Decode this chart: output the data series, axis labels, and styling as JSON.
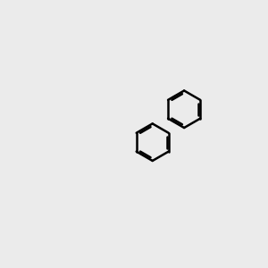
{
  "bg_color": "#ebebeb",
  "bond_color": "#000000",
  "N_color": "#0000cc",
  "S_color": "#cccc00",
  "O_color": "#ff0000",
  "NH_color": "#6699cc",
  "line_width": 1.8,
  "figsize": [
    3.0,
    3.0
  ],
  "dpi": 100
}
